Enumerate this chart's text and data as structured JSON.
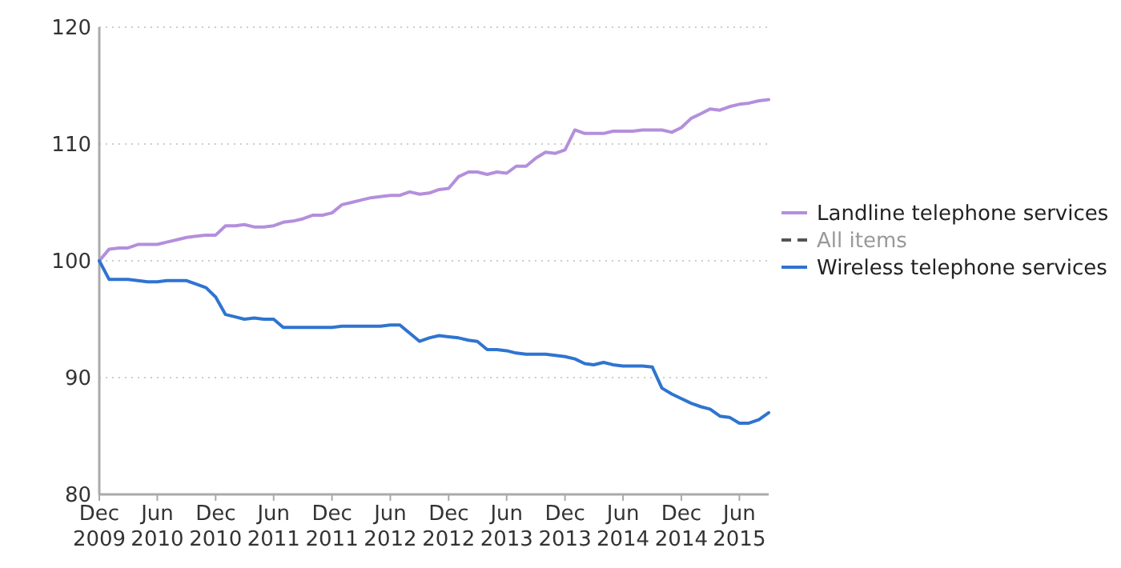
{
  "chart_data": {
    "type": "line",
    "x": [
      "2009-12",
      "2010-01",
      "2010-02",
      "2010-03",
      "2010-04",
      "2010-05",
      "2010-06",
      "2010-07",
      "2010-08",
      "2010-09",
      "2010-10",
      "2010-11",
      "2010-12",
      "2011-01",
      "2011-02",
      "2011-03",
      "2011-04",
      "2011-05",
      "2011-06",
      "2011-07",
      "2011-08",
      "2011-09",
      "2011-10",
      "2011-11",
      "2011-12",
      "2012-01",
      "2012-02",
      "2012-03",
      "2012-04",
      "2012-05",
      "2012-06",
      "2012-07",
      "2012-08",
      "2012-09",
      "2012-10",
      "2012-11",
      "2012-12",
      "2013-01",
      "2013-02",
      "2013-03",
      "2013-04",
      "2013-05",
      "2013-06",
      "2013-07",
      "2013-08",
      "2013-09",
      "2013-10",
      "2013-11",
      "2013-12",
      "2014-01",
      "2014-02",
      "2014-03",
      "2014-04",
      "2014-05",
      "2014-06",
      "2014-07",
      "2014-08",
      "2014-09",
      "2014-10",
      "2014-11",
      "2014-12",
      "2015-01",
      "2015-02",
      "2015-03",
      "2015-04",
      "2015-05",
      "2015-06",
      "2015-07",
      "2015-08",
      "2015-09"
    ],
    "series": [
      {
        "name": "Landline telephone services",
        "color": "#b48fdc",
        "values": [
          100,
          101,
          101.1,
          101.1,
          101.4,
          101.4,
          101.4,
          101.6,
          101.8,
          102,
          102.1,
          102.2,
          102.2,
          103,
          103,
          103.1,
          102.9,
          102.9,
          103,
          103.3,
          103.4,
          103.6,
          103.9,
          103.9,
          104.1,
          104.8,
          105,
          105.2,
          105.4,
          105.5,
          105.6,
          105.6,
          105.9,
          105.7,
          105.8,
          106.1,
          106.2,
          107.2,
          107.6,
          107.6,
          107.4,
          107.6,
          107.5,
          108.1,
          108.1,
          108.8,
          109.3,
          109.2,
          109.5,
          111.2,
          110.9,
          110.9,
          110.9,
          111.1,
          111.1,
          111.1,
          111.2,
          111.2,
          111.2,
          111,
          111.4,
          112.2,
          112.6,
          113,
          112.9,
          113.2,
          113.4,
          113.5,
          113.7,
          113.8
        ]
      },
      {
        "name": "All items",
        "color": "#555555",
        "line_style": "dashed",
        "values": [
          null,
          null,
          null,
          null,
          null,
          null,
          null,
          null,
          null,
          null,
          null,
          null,
          null,
          null,
          null,
          null,
          null,
          null,
          null,
          null,
          null,
          null,
          null,
          null,
          null,
          null,
          null,
          null,
          null,
          null,
          null,
          null,
          null,
          null,
          null,
          null,
          null,
          null,
          null,
          null,
          null,
          null,
          null,
          null,
          null,
          null,
          null,
          null,
          null,
          null,
          null,
          null,
          null,
          null,
          null,
          null,
          null,
          null,
          null,
          null,
          null,
          null,
          null,
          null,
          null,
          null,
          null,
          null,
          null,
          null
        ]
      },
      {
        "name": "Wireless telephone services",
        "color": "#2f74d0",
        "values": [
          100,
          98.4,
          98.4,
          98.4,
          98.3,
          98.2,
          98.2,
          98.3,
          98.3,
          98.3,
          98,
          97.7,
          96.9,
          95.4,
          95.2,
          95,
          95.1,
          95,
          95,
          94.3,
          94.3,
          94.3,
          94.3,
          94.3,
          94.3,
          94.4,
          94.4,
          94.4,
          94.4,
          94.4,
          94.5,
          94.5,
          93.8,
          93.1,
          93.4,
          93.6,
          93.5,
          93.4,
          93.2,
          93.1,
          92.4,
          92.4,
          92.3,
          92.1,
          92,
          92,
          92,
          91.9,
          91.8,
          91.6,
          91.2,
          91.1,
          91.3,
          91.1,
          91,
          91,
          91,
          90.9,
          89.1,
          88.6,
          88.2,
          87.8,
          87.5,
          87.3,
          86.7,
          86.6,
          86.1,
          86.1,
          86.4,
          87
        ]
      }
    ],
    "xlim": [
      "2009-12",
      "2015-09"
    ],
    "xticks": [
      {
        "value": "2009-12",
        "label": "Dec 2009"
      },
      {
        "value": "2010-06",
        "label": "Jun 2010"
      },
      {
        "value": "2010-12",
        "label": "Dec 2010"
      },
      {
        "value": "2011-06",
        "label": "Jun 2011"
      },
      {
        "value": "2011-12",
        "label": "Dec 2011"
      },
      {
        "value": "2012-06",
        "label": "Jun 2012"
      },
      {
        "value": "2012-12",
        "label": "Dec 2012"
      },
      {
        "value": "2013-06",
        "label": "Jun 2013"
      },
      {
        "value": "2013-12",
        "label": "Dec 2013"
      },
      {
        "value": "2014-06",
        "label": "Jun 2014"
      },
      {
        "value": "2014-12",
        "label": "Dec 2014"
      },
      {
        "value": "2015-06",
        "label": "Jun 2015"
      }
    ],
    "ylim": [
      80,
      120
    ],
    "yticks": [
      80,
      90,
      100,
      110,
      120
    ],
    "grid": "y",
    "legend": "right"
  }
}
